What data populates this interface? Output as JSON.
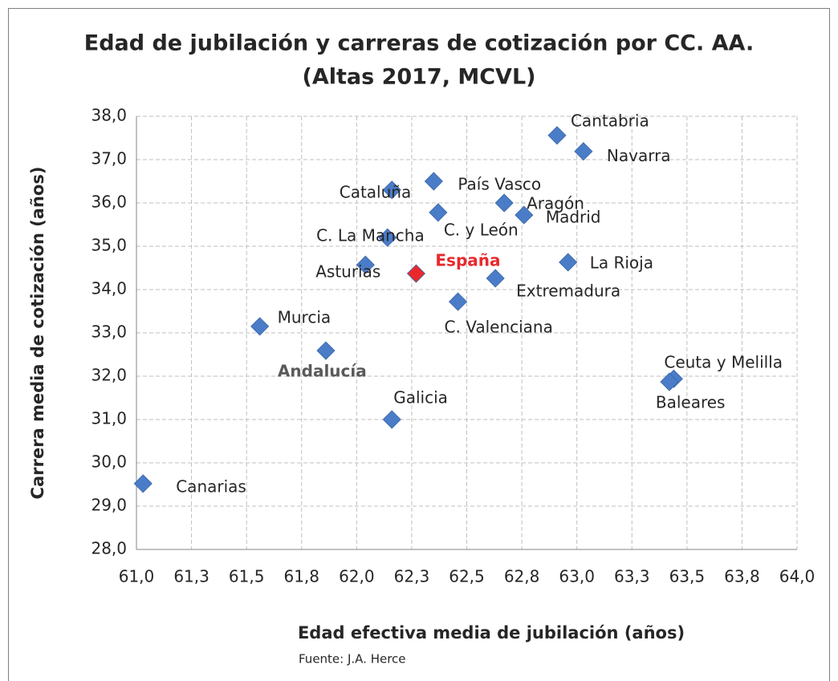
{
  "chart_data": {
    "type": "scatter",
    "title": [
      "Edad de jubilación y carreras de cotización por CC. AA.",
      "(Altas 2017, MCVL)"
    ],
    "x_label": "Edad efectiva media de jubilación (años)",
    "y_label": "Carrera media de cotización (años)",
    "source": "Fuente: J.A. Herce",
    "xlim": [
      61,
      64
    ],
    "ylim": [
      28,
      38
    ],
    "xticks": [
      {
        "value": 61,
        "label": "61,0"
      },
      {
        "value": 61.25,
        "label": "61,3"
      },
      {
        "value": 61.5,
        "label": "61,5"
      },
      {
        "value": 61.75,
        "label": "61,8"
      },
      {
        "value": 62,
        "label": "62,0"
      },
      {
        "value": 62.25,
        "label": "62,3"
      },
      {
        "value": 62.5,
        "label": "62,5"
      },
      {
        "value": 62.75,
        "label": "62,8"
      },
      {
        "value": 63,
        "label": "63,0"
      },
      {
        "value": 63.25,
        "label": "63,3"
      },
      {
        "value": 63.5,
        "label": "63,5"
      },
      {
        "value": 63.75,
        "label": "63,8"
      },
      {
        "value": 64,
        "label": "64,0"
      }
    ],
    "yticks": [
      {
        "value": 28,
        "label": "28,0"
      },
      {
        "value": 29,
        "label": "29,0"
      },
      {
        "value": 30,
        "label": "30,0"
      },
      {
        "value": 31,
        "label": "31,0"
      },
      {
        "value": 32,
        "label": "32,0"
      },
      {
        "value": 33,
        "label": "33,0"
      },
      {
        "value": 34,
        "label": "34,0"
      },
      {
        "value": 35,
        "label": "35,0"
      },
      {
        "value": 36,
        "label": "36,0"
      },
      {
        "value": 37,
        "label": "37,0"
      },
      {
        "value": 38,
        "label": "38,0"
      }
    ],
    "grid": true,
    "color": "#4a7cc7",
    "points": [
      {
        "label": "Canarias",
        "x": 61.03,
        "y": 29.52
      },
      {
        "label": "Murcia",
        "x": 61.56,
        "y": 33.15
      },
      {
        "label": "Andalucía",
        "x": 61.86,
        "y": 32.59,
        "bold": true,
        "label_color": "#595959"
      },
      {
        "label": "Galicia",
        "x": 62.16,
        "y": 31.0
      },
      {
        "label": "Asturias",
        "x": 62.04,
        "y": 34.57
      },
      {
        "label": "C. La Mancha",
        "x": 62.14,
        "y": 35.2
      },
      {
        "label": "Cataluña",
        "x": 62.16,
        "y": 36.3
      },
      {
        "label": "España",
        "x": 62.27,
        "y": 34.37,
        "bold": true,
        "color": "#e8282b",
        "label_color": "#e8282b"
      },
      {
        "label": "País Vasco",
        "x": 62.35,
        "y": 36.5
      },
      {
        "label": "C. y León",
        "x": 62.37,
        "y": 35.78
      },
      {
        "label": "C. Valenciana",
        "x": 62.46,
        "y": 33.72
      },
      {
        "label": "Extremadura",
        "x": 62.63,
        "y": 34.26
      },
      {
        "label": "Aragón",
        "x": 62.67,
        "y": 36.0
      },
      {
        "label": "Madrid",
        "x": 62.76,
        "y": 35.72
      },
      {
        "label": "Cantabria",
        "x": 62.91,
        "y": 37.56
      },
      {
        "label": "Navarra",
        "x": 63.03,
        "y": 37.19
      },
      {
        "label": "La Rioja",
        "x": 62.96,
        "y": 34.63
      },
      {
        "label": "Ceuta y Melilla",
        "x": 63.44,
        "y": 31.94
      },
      {
        "label": "Baleares",
        "x": 63.42,
        "y": 31.87
      }
    ]
  }
}
